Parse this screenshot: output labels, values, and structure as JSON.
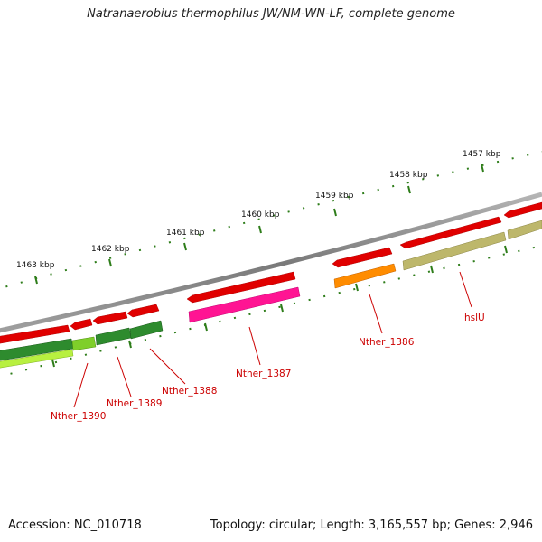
{
  "title": "Natranaerobius thermophilus JW/NM-WN-LF, complete genome",
  "footer": {
    "accession": "Accession: NC_010718",
    "topology": "Topology: circular; Length: 3,165,557 bp; Genes: 2,946"
  },
  "kbp_labels": [
    "1457 kbp",
    "1458 kbp",
    "1459 kbp",
    "1460 kbp",
    "1461 kbp",
    "1462 kbp",
    "1463 kbp"
  ],
  "gene_labels": [
    "hslU",
    "Nther_1386",
    "Nther_1387",
    "Nther_1388",
    "Nther_1389",
    "Nther_1390"
  ],
  "colors": {
    "backbone": "#8a8a8a",
    "cds": "#e00000",
    "tick": "#2e7d1a",
    "label": "#cc0000",
    "hslU": "#bdb76b",
    "Nther_1386": "#ff8c00",
    "Nther_1387": "#ff1493",
    "Nther_1388": "#2e8b2e",
    "Nther_1389": "#2e8b2e",
    "Nther_1390": "#7fcf2a"
  }
}
